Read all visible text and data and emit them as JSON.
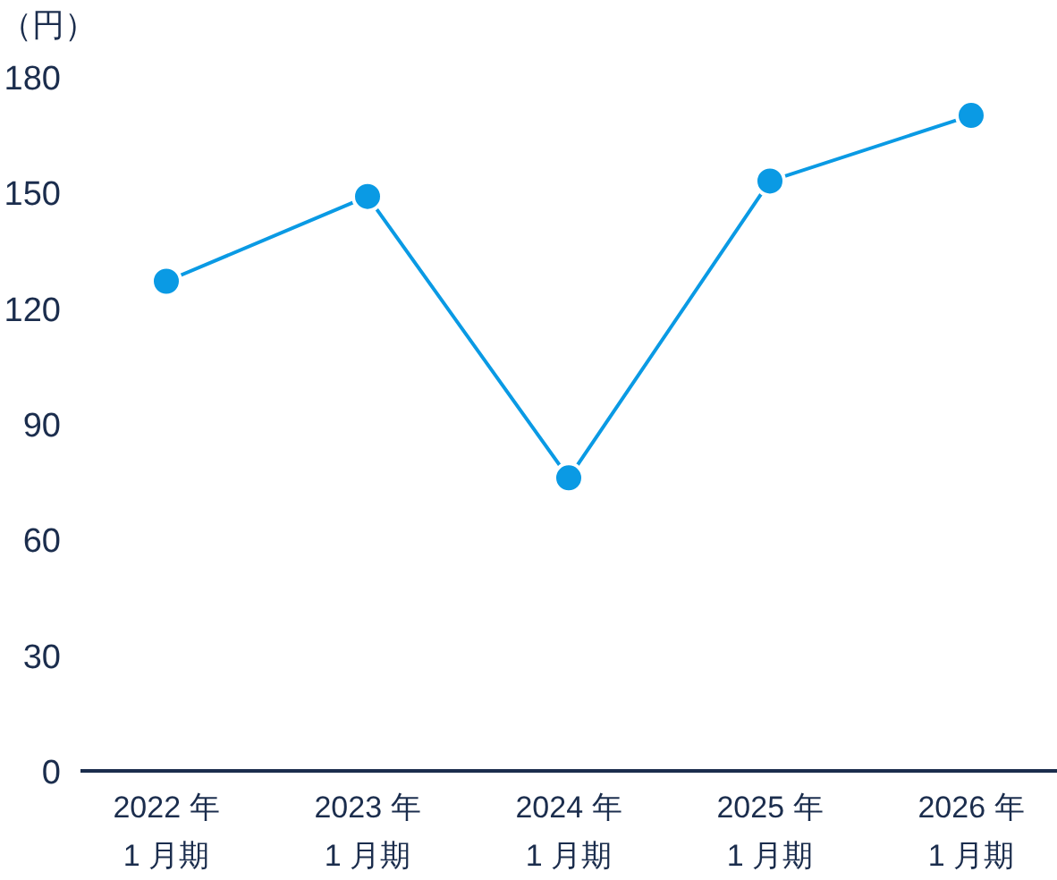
{
  "chart_data": {
    "type": "line",
    "ylabel": "（円）",
    "categories": [
      "2022 年\n1 月期",
      "2023 年\n1 月期",
      "2024 年\n1 月期",
      "2025 年\n1 月期",
      "2026 年\n1 月期"
    ],
    "series": [
      {
        "color": "#0a9ae4",
        "values": [
          127,
          149,
          76,
          153,
          170
        ]
      }
    ],
    "ylim": [
      0,
      180
    ],
    "yticks": [
      0,
      30,
      60,
      90,
      120,
      150,
      180
    ],
    "marker": "circle",
    "line_style": "solid",
    "grid": false
  }
}
